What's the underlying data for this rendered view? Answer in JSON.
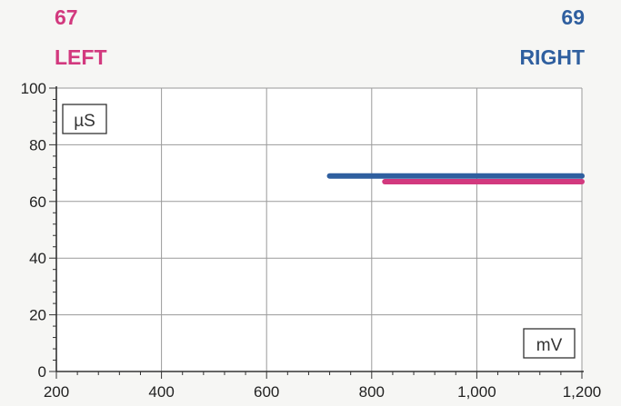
{
  "header": {
    "left_value": "67",
    "left_label": "LEFT",
    "right_value": "69",
    "right_label": "RIGHT",
    "left_color": "#d2397e",
    "right_color": "#2f5f9f"
  },
  "chart_data": {
    "type": "line",
    "ylabel": "µS",
    "xlabel": "mV",
    "xlim": [
      200,
      1200
    ],
    "ylim": [
      0,
      100
    ],
    "x_ticks": [
      "200",
      "400",
      "600",
      "800",
      "1,000",
      "1,200"
    ],
    "x_tick_values": [
      200,
      400,
      600,
      800,
      1000,
      1200
    ],
    "y_ticks": [
      "0",
      "20",
      "40",
      "60",
      "80",
      "100"
    ],
    "y_tick_values": [
      0,
      20,
      40,
      60,
      80,
      100
    ],
    "grid": true,
    "series": [
      {
        "name": "RIGHT",
        "color": "#2f5f9f",
        "x": [
          720,
          1200
        ],
        "y": [
          69,
          69
        ]
      },
      {
        "name": "LEFT",
        "color": "#d2397e",
        "x": [
          825,
          1200
        ],
        "y": [
          67,
          67
        ]
      }
    ]
  }
}
